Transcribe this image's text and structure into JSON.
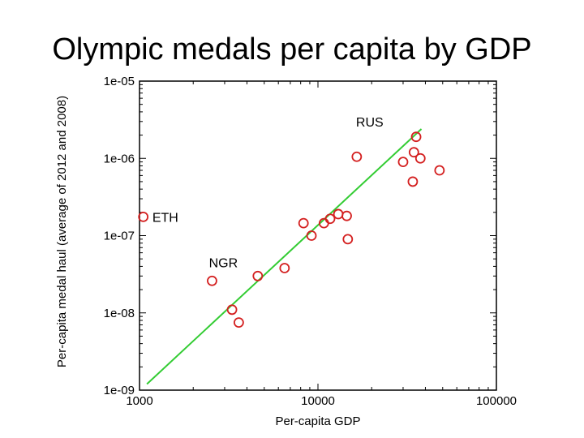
{
  "slide": {
    "title": "Olympic medals per capita by GDP"
  },
  "chart_data": {
    "type": "scatter",
    "title": "Olympic medals per capita by GDP",
    "xlabel": "Per-capita GDP",
    "ylabel": "Per-capita medal haul (average of 2012 and 2008)",
    "x_scale": "log",
    "y_scale": "log",
    "xlim": [
      1000,
      100000
    ],
    "ylim": [
      1e-09,
      1e-05
    ],
    "x_ticks": [
      {
        "value": 1000,
        "label": "1000"
      },
      {
        "value": 10000,
        "label": "10000"
      },
      {
        "value": 100000,
        "label": "100000"
      }
    ],
    "y_ticks": [
      {
        "value": 1e-05,
        "label": "1e-05"
      },
      {
        "value": 1e-06,
        "label": "1e-06"
      },
      {
        "value": 1e-07,
        "label": "1e-07"
      },
      {
        "value": 1e-08,
        "label": "1e-08"
      },
      {
        "value": 1e-09,
        "label": "1e-09"
      }
    ],
    "grid": false,
    "marker_color": "#d42020",
    "trend_color": "#33cc33",
    "points": [
      {
        "x": 1050,
        "y": 1.75e-07
      },
      {
        "x": 2550,
        "y": 2.6e-08
      },
      {
        "x": 3300,
        "y": 1.1e-08
      },
      {
        "x": 3600,
        "y": 7.5e-09
      },
      {
        "x": 4600,
        "y": 3e-08
      },
      {
        "x": 6500,
        "y": 3.8e-08
      },
      {
        "x": 8300,
        "y": 1.45e-07
      },
      {
        "x": 9200,
        "y": 1e-07
      },
      {
        "x": 10800,
        "y": 1.45e-07
      },
      {
        "x": 11700,
        "y": 1.65e-07
      },
      {
        "x": 13000,
        "y": 1.9e-07
      },
      {
        "x": 14500,
        "y": 1.8e-07
      },
      {
        "x": 14700,
        "y": 9e-08
      },
      {
        "x": 16500,
        "y": 1.05e-06
      },
      {
        "x": 30000,
        "y": 9e-07
      },
      {
        "x": 34000,
        "y": 5e-07
      },
      {
        "x": 34500,
        "y": 1.2e-06
      },
      {
        "x": 35500,
        "y": 1.9e-06
      },
      {
        "x": 37500,
        "y": 1e-06
      },
      {
        "x": 48000,
        "y": 7e-07
      }
    ],
    "trend_line": {
      "x": [
        1100,
        38000
      ],
      "y": [
        1.2e-09,
        2.4e-06
      ]
    },
    "annotations": [
      {
        "text": "RUS",
        "x": 19500,
        "y": 3e-06,
        "anchor": "middle"
      },
      {
        "text": "ETH",
        "x": 1180,
        "y": 1.75e-07,
        "anchor": "start"
      },
      {
        "text": "NGR",
        "x": 2950,
        "y": 4.5e-08,
        "anchor": "middle"
      }
    ]
  }
}
